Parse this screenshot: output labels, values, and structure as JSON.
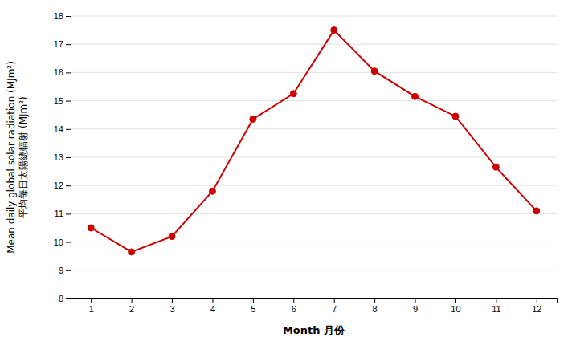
{
  "chart_data": {
    "type": "line",
    "xlabel": "Month 月份",
    "ylabel": [
      "Mean daily global solar radiation (MJm²)",
      "平均每日太陽總輻射 (MJm²)"
    ],
    "x": [
      1,
      2,
      3,
      4,
      5,
      6,
      7,
      8,
      9,
      10,
      11,
      12
    ],
    "values": [
      10.5,
      9.65,
      10.2,
      11.8,
      14.35,
      15.25,
      17.5,
      16.05,
      15.15,
      14.45,
      12.65,
      11.1
    ],
    "xlim": [
      0.5,
      12.5
    ],
    "xticks": [
      1,
      2,
      3,
      4,
      5,
      6,
      7,
      8,
      9,
      10,
      11,
      12
    ],
    "ylim": [
      8,
      18
    ],
    "yticks": [
      8,
      9,
      10,
      11,
      12,
      13,
      14,
      15,
      16,
      17,
      18
    ],
    "grid": true,
    "color": "#cc0000",
    "marker": "circle"
  }
}
